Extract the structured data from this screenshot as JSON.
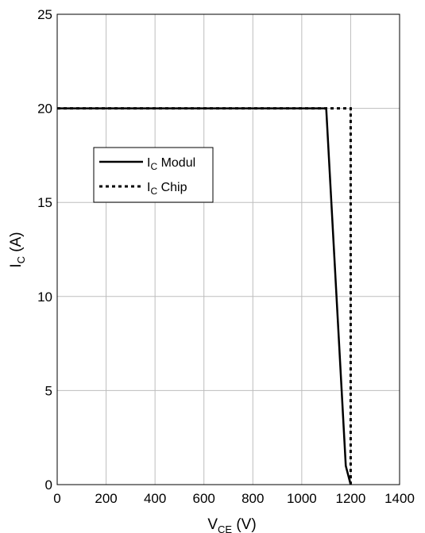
{
  "chart_data": {
    "type": "line",
    "title": "",
    "xlabel": {
      "main": "V",
      "sub": "CE",
      "unit": " (V)"
    },
    "ylabel": {
      "main": "I",
      "sub": "C",
      "unit": " (A)"
    },
    "xlim": [
      0,
      1400
    ],
    "ylim": [
      0,
      25
    ],
    "xticks": [
      0,
      200,
      400,
      600,
      800,
      1000,
      1200,
      1400
    ],
    "yticks": [
      0,
      5,
      10,
      15,
      20,
      25
    ],
    "grid": true,
    "legend_position": "upper-left",
    "series": [
      {
        "name": {
          "main": "I",
          "sub": "C",
          "rest": " Modul"
        },
        "style": "solid",
        "color": "#000000",
        "points": [
          [
            0,
            20
          ],
          [
            1100,
            20
          ],
          [
            1180,
            1
          ],
          [
            1200,
            0
          ]
        ]
      },
      {
        "name": {
          "main": "I",
          "sub": "C",
          "rest": " Chip"
        },
        "style": "dotted",
        "color": "#000000",
        "points": [
          [
            0,
            20
          ],
          [
            1200,
            20
          ],
          [
            1200,
            0
          ]
        ]
      }
    ]
  }
}
